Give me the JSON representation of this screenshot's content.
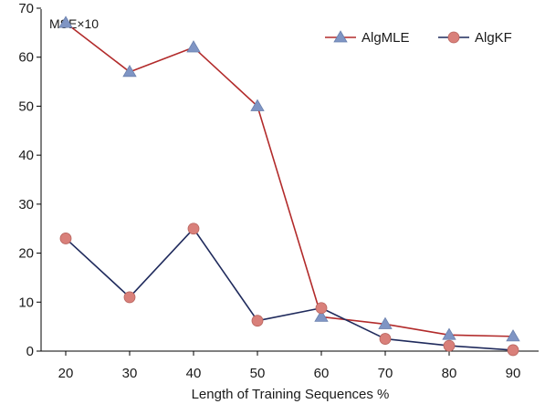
{
  "chart_data": {
    "type": "line",
    "title": "",
    "unit_label": "MSE×10",
    "xlabel": "Length of Training Sequences %",
    "ylabel": "",
    "categories": [
      "20",
      "30",
      "40",
      "50",
      "60",
      "70",
      "80",
      "90"
    ],
    "ylim": [
      0,
      70
    ],
    "yticks": [
      0,
      10,
      20,
      30,
      40,
      50,
      60,
      70
    ],
    "grid": false,
    "legend_position": "top-right",
    "series": [
      {
        "name": "AlgMLE",
        "marker": "triangle",
        "line_color": "#b22b2b",
        "marker_color": "#7f95c4",
        "values": [
          67,
          57,
          62,
          50,
          7,
          5.5,
          3.3,
          3
        ]
      },
      {
        "name": "AlgKF",
        "marker": "circle",
        "line_color": "#1f2a5c",
        "marker_color": "#d9807a",
        "values": [
          23,
          11,
          25,
          6.2,
          8.8,
          2.5,
          1.1,
          0.2
        ]
      }
    ]
  }
}
